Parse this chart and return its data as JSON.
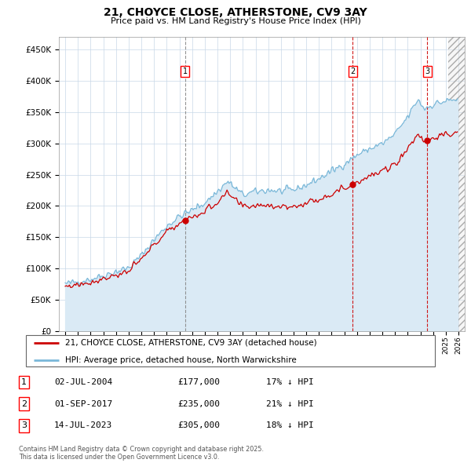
{
  "title": "21, CHOYCE CLOSE, ATHERSTONE, CV9 3AY",
  "subtitle": "Price paid vs. HM Land Registry's House Price Index (HPI)",
  "ytick_values": [
    0,
    50000,
    100000,
    150000,
    200000,
    250000,
    300000,
    350000,
    400000,
    450000
  ],
  "ylabel_ticks": [
    "£0",
    "£50K",
    "£100K",
    "£150K",
    "£200K",
    "£250K",
    "£300K",
    "£350K",
    "£400K",
    "£450K"
  ],
  "xmin": 1994.5,
  "xmax": 2026.5,
  "ymin": 0,
  "ymax": 470000,
  "hpi_color": "#7ab8d9",
  "price_color": "#cc0000",
  "hpi_fill_color": "#daeaf5",
  "sale_dates_float": [
    2004.46,
    2017.67,
    2023.54
  ],
  "sale_prices": [
    177000,
    235000,
    305000
  ],
  "sale_labels": [
    "1",
    "2",
    "3"
  ],
  "sale_line_colors": [
    "#888888",
    "#cc0000",
    "#cc0000"
  ],
  "sale_line_styles": [
    "--",
    "--",
    "--"
  ],
  "legend_price_label": "21, CHOYCE CLOSE, ATHERSTONE, CV9 3AY (detached house)",
  "legend_hpi_label": "HPI: Average price, detached house, North Warwickshire",
  "table_data": [
    [
      "1",
      "02-JUL-2004",
      "£177,000",
      "17% ↓ HPI"
    ],
    [
      "2",
      "01-SEP-2017",
      "£235,000",
      "21% ↓ HPI"
    ],
    [
      "3",
      "14-JUL-2023",
      "£305,000",
      "18% ↓ HPI"
    ]
  ],
  "footer": "Contains HM Land Registry data © Crown copyright and database right 2025.\nThis data is licensed under the Open Government Licence v3.0.",
  "hatch_start": 2025.2,
  "grid_color": "#c8d8e8",
  "background_color": "#ffffff"
}
